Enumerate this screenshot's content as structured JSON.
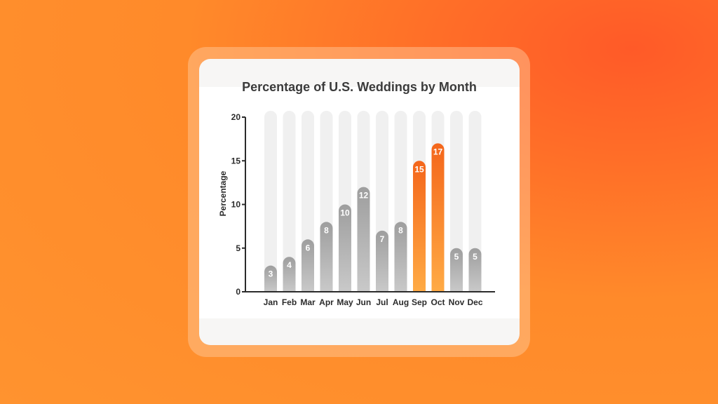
{
  "chart_data": {
    "type": "bar",
    "title": "Percentage of U.S. Weddings by Month",
    "xlabel": "",
    "ylabel": "Percentage",
    "ylim": [
      0,
      20
    ],
    "yticks": [
      0,
      5,
      10,
      15,
      20
    ],
    "categories": [
      "Jan",
      "Feb",
      "Mar",
      "Apr",
      "May",
      "Jun",
      "Jul",
      "Aug",
      "Sep",
      "Oct",
      "Nov",
      "Dec"
    ],
    "values": [
      3,
      4,
      6,
      8,
      10,
      12,
      7,
      8,
      15,
      17,
      5,
      5
    ],
    "highlighted": [
      "Sep",
      "Oct"
    ],
    "colors": {
      "bar": "#b3b3b3",
      "highlight": "#f7701e",
      "track": "#f0f0f0",
      "axis": "#2b2b2b"
    }
  }
}
